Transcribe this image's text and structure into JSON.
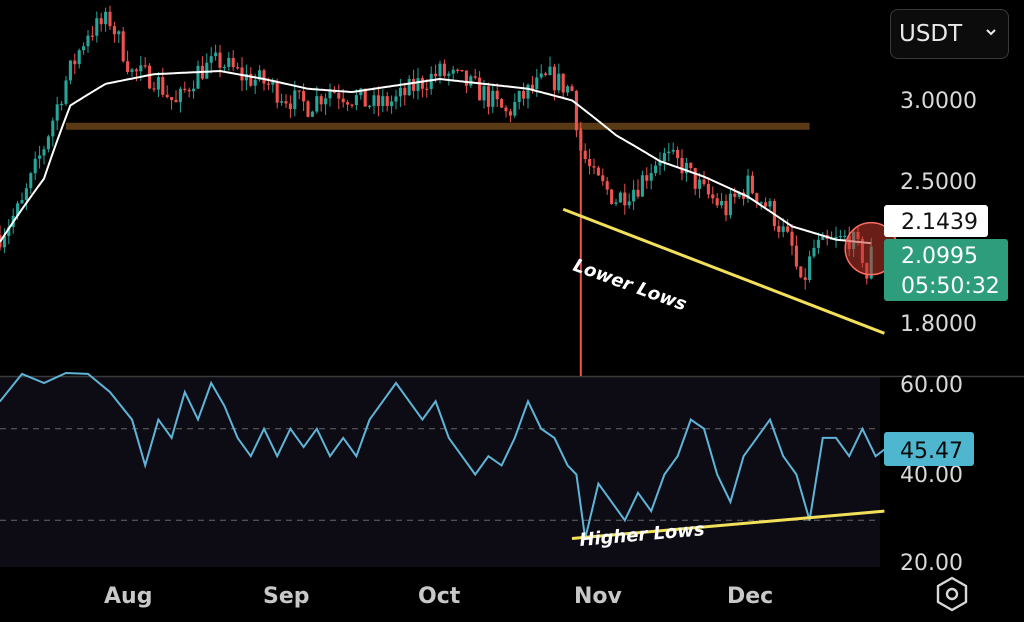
{
  "currency_selector": {
    "value": "USDT",
    "icon": "chevron-down-icon"
  },
  "settings": {
    "icon": "hexagon-settings-icon"
  },
  "chart_data": [
    {
      "type": "candlestick",
      "title": "",
      "y_scale": "log",
      "ylim": [
        1.65,
        3.5
      ],
      "y_ticks": [
        "3.0000",
        "2.5000",
        "1.8000"
      ],
      "x_ticks": [
        "Aug",
        "Sep",
        "Oct",
        "Nov",
        "Dec"
      ],
      "x_range_days": [
        -60,
        140
      ],
      "colors": {
        "up": "#26a69a",
        "down": "#ef5350",
        "ma": "#ffffff",
        "support": "#5a3a14",
        "trend": "#f2e05a"
      },
      "ohlc_anchors": [
        {
          "day": -60,
          "close": 2.18
        },
        {
          "day": -55,
          "close": 2.32
        },
        {
          "day": -50,
          "close": 2.62
        },
        {
          "day": -45,
          "close": 3.0
        },
        {
          "day": -40,
          "close": 3.32
        },
        {
          "day": -35,
          "close": 3.4
        },
        {
          "day": -30,
          "close": 3.05
        },
        {
          "day": -25,
          "close": 3.02
        },
        {
          "day": -20,
          "close": 2.85
        },
        {
          "day": -15,
          "close": 3.06
        },
        {
          "day": -10,
          "close": 3.12
        },
        {
          "day": -5,
          "close": 3.03
        },
        {
          "day": 0,
          "close": 2.99
        },
        {
          "day": 5,
          "close": 2.9
        },
        {
          "day": 10,
          "close": 2.85
        },
        {
          "day": 15,
          "close": 2.95
        },
        {
          "day": 20,
          "close": 2.9
        },
        {
          "day": 25,
          "close": 2.85
        },
        {
          "day": 30,
          "close": 2.88
        },
        {
          "day": 35,
          "close": 2.98
        },
        {
          "day": 40,
          "close": 3.05
        },
        {
          "day": 45,
          "close": 3.0
        },
        {
          "day": 50,
          "close": 2.92
        },
        {
          "day": 55,
          "close": 2.8
        },
        {
          "day": 60,
          "close": 2.93
        },
        {
          "day": 65,
          "close": 3.02
        },
        {
          "day": 70,
          "close": 2.94
        },
        {
          "day": 72,
          "close": 2.6
        },
        {
          "day": 75,
          "close": 2.45
        },
        {
          "day": 80,
          "close": 2.35
        },
        {
          "day": 85,
          "close": 2.42
        },
        {
          "day": 90,
          "close": 2.57
        },
        {
          "day": 95,
          "close": 2.52
        },
        {
          "day": 100,
          "close": 2.38
        },
        {
          "day": 105,
          "close": 2.3
        },
        {
          "day": 110,
          "close": 2.42
        },
        {
          "day": 115,
          "close": 2.3
        },
        {
          "day": 120,
          "close": 2.12
        },
        {
          "day": 122,
          "close": 1.95
        },
        {
          "day": 125,
          "close": 2.12
        },
        {
          "day": 130,
          "close": 2.15
        },
        {
          "day": 133,
          "close": 2.17
        },
        {
          "day": 136,
          "close": 2.09
        },
        {
          "day": 137,
          "close": 2.0
        },
        {
          "day": 138,
          "close": 2.0995
        }
      ],
      "moving_average": [
        {
          "day": -60,
          "value": 2.15
        },
        {
          "day": -50,
          "value": 2.45
        },
        {
          "day": -44,
          "value": 2.85
        },
        {
          "day": -36,
          "value": 2.98
        },
        {
          "day": -25,
          "value": 3.04
        },
        {
          "day": -10,
          "value": 3.06
        },
        {
          "day": 0,
          "value": 3.01
        },
        {
          "day": 10,
          "value": 2.95
        },
        {
          "day": 20,
          "value": 2.93
        },
        {
          "day": 30,
          "value": 2.97
        },
        {
          "day": 40,
          "value": 3.01
        },
        {
          "day": 50,
          "value": 2.98
        },
        {
          "day": 60,
          "value": 2.95
        },
        {
          "day": 70,
          "value": 2.88
        },
        {
          "day": 80,
          "value": 2.68
        },
        {
          "day": 90,
          "value": 2.54
        },
        {
          "day": 100,
          "value": 2.46
        },
        {
          "day": 110,
          "value": 2.36
        },
        {
          "day": 120,
          "value": 2.22
        },
        {
          "day": 130,
          "value": 2.16
        },
        {
          "day": 138,
          "value": 2.1439
        }
      ],
      "support_line": {
        "from_day": -45,
        "to_day": 124,
        "value": 2.73
      },
      "trendline": {
        "from": {
          "day": 68,
          "value": 2.3
        },
        "to": {
          "day": 141,
          "value": 1.78
        },
        "label": "Lower Lows"
      },
      "wick_spike": {
        "day": 72,
        "high": 2.72,
        "low": 1.55
      },
      "current_price": {
        "value": "2.0995",
        "countdown": "05:50:32",
        "color": "#26a69a"
      },
      "ma_value_badge": "2.1439",
      "highlight_circle": {
        "day": 138,
        "value": 2.12,
        "color": "#c0392b"
      }
    },
    {
      "type": "line",
      "title": "",
      "ylim": [
        20,
        60
      ],
      "y_ticks": [
        "60.00",
        "40.00",
        "20.00"
      ],
      "dashed_levels": [
        50,
        30
      ],
      "series": [
        {
          "color": "#5fb4d8",
          "points": [
            {
              "day": -60,
              "value": 56
            },
            {
              "day": -55,
              "value": 62
            },
            {
              "day": -50,
              "value": 60
            },
            {
              "day": -45,
              "value": 66
            },
            {
              "day": -40,
              "value": 62
            },
            {
              "day": -35,
              "value": 58
            },
            {
              "day": -30,
              "value": 52
            },
            {
              "day": -27,
              "value": 42
            },
            {
              "day": -24,
              "value": 52
            },
            {
              "day": -21,
              "value": 48
            },
            {
              "day": -18,
              "value": 58
            },
            {
              "day": -15,
              "value": 52
            },
            {
              "day": -12,
              "value": 60
            },
            {
              "day": -9,
              "value": 55
            },
            {
              "day": -6,
              "value": 48
            },
            {
              "day": -3,
              "value": 44
            },
            {
              "day": 0,
              "value": 50
            },
            {
              "day": 3,
              "value": 44
            },
            {
              "day": 6,
              "value": 50
            },
            {
              "day": 9,
              "value": 46
            },
            {
              "day": 12,
              "value": 50
            },
            {
              "day": 15,
              "value": 44
            },
            {
              "day": 18,
              "value": 48
            },
            {
              "day": 21,
              "value": 44
            },
            {
              "day": 24,
              "value": 52
            },
            {
              "day": 27,
              "value": 56
            },
            {
              "day": 30,
              "value": 60
            },
            {
              "day": 33,
              "value": 56
            },
            {
              "day": 36,
              "value": 52
            },
            {
              "day": 39,
              "value": 56
            },
            {
              "day": 42,
              "value": 48
            },
            {
              "day": 45,
              "value": 44
            },
            {
              "day": 48,
              "value": 40
            },
            {
              "day": 51,
              "value": 44
            },
            {
              "day": 54,
              "value": 42
            },
            {
              "day": 57,
              "value": 48
            },
            {
              "day": 60,
              "value": 56
            },
            {
              "day": 63,
              "value": 50
            },
            {
              "day": 66,
              "value": 48
            },
            {
              "day": 69,
              "value": 42
            },
            {
              "day": 71,
              "value": 40
            },
            {
              "day": 73,
              "value": 26
            },
            {
              "day": 76,
              "value": 38
            },
            {
              "day": 79,
              "value": 34
            },
            {
              "day": 82,
              "value": 30
            },
            {
              "day": 85,
              "value": 36
            },
            {
              "day": 88,
              "value": 32
            },
            {
              "day": 91,
              "value": 40
            },
            {
              "day": 94,
              "value": 44
            },
            {
              "day": 97,
              "value": 52
            },
            {
              "day": 100,
              "value": 50
            },
            {
              "day": 103,
              "value": 40
            },
            {
              "day": 106,
              "value": 34
            },
            {
              "day": 109,
              "value": 44
            },
            {
              "day": 112,
              "value": 48
            },
            {
              "day": 115,
              "value": 52
            },
            {
              "day": 118,
              "value": 44
            },
            {
              "day": 121,
              "value": 40
            },
            {
              "day": 124,
              "value": 30
            },
            {
              "day": 127,
              "value": 48
            },
            {
              "day": 130,
              "value": 48
            },
            {
              "day": 133,
              "value": 44
            },
            {
              "day": 136,
              "value": 50
            },
            {
              "day": 139,
              "value": 44
            },
            {
              "day": 141,
              "value": 45.47
            }
          ]
        }
      ],
      "trendline": {
        "from": {
          "day": 70,
          "value": 26
        },
        "to": {
          "day": 141,
          "value": 32
        },
        "label": "Higher Lows"
      },
      "current_value": {
        "value": "45.47",
        "color": "#4fb6cf"
      }
    }
  ]
}
